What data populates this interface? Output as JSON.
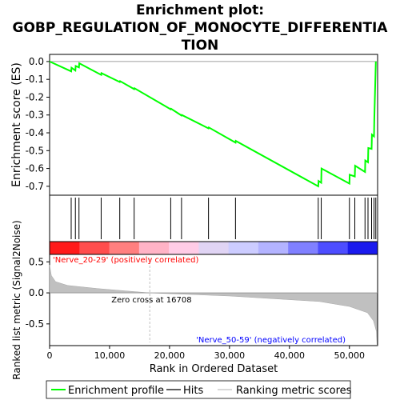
{
  "title": {
    "line1": "Enrichment plot:",
    "line2": "GOBP_REGULATION_OF_MONOCYTE_DIFFERENTIA",
    "line3": "TION"
  },
  "chart_data": {
    "type": "line",
    "colors": {
      "es_curve": "#00ff00",
      "hits": "#000000",
      "metric_fill": "#c0c0c0",
      "pos_label": "#ff0000",
      "neg_label": "#0000ff"
    },
    "es_panel": {
      "ylabel": "Enrichment score (ES)",
      "ylim": [
        -0.75,
        0.04
      ],
      "yticks": [
        0.0,
        -0.1,
        -0.2,
        -0.3,
        -0.4,
        -0.5,
        -0.6,
        -0.7
      ],
      "ytick_labels": [
        "0.0",
        "-0.1",
        "-0.2",
        "-0.3",
        "-0.4",
        "-0.5",
        "-0.6",
        "-0.7"
      ],
      "series": [
        {
          "name": "Enrichment profile",
          "x": [
            0,
            3600,
            3650,
            4300,
            4350,
            4900,
            4950,
            8600,
            8650,
            11700,
            11750,
            14100,
            14150,
            20200,
            20250,
            22000,
            22050,
            26500,
            26550,
            31000,
            31050,
            44800,
            44850,
            45300,
            45350,
            50000,
            50050,
            50900,
            50950,
            52600,
            52650,
            53100,
            53150,
            53700,
            53750,
            54100,
            54150,
            54400
          ],
          "y": [
            0.0,
            -0.055,
            -0.035,
            -0.05,
            -0.025,
            -0.033,
            -0.01,
            -0.075,
            -0.065,
            -0.115,
            -0.11,
            -0.155,
            -0.15,
            -0.268,
            -0.265,
            -0.303,
            -0.3,
            -0.375,
            -0.37,
            -0.455,
            -0.445,
            -0.7,
            -0.67,
            -0.68,
            -0.6,
            -0.685,
            -0.635,
            -0.645,
            -0.585,
            -0.62,
            -0.555,
            -0.565,
            -0.485,
            -0.49,
            -0.41,
            -0.42,
            -0.32,
            0.0
          ]
        }
      ]
    },
    "hits": [
      3600,
      4300,
      4900,
      8600,
      11700,
      14100,
      20200,
      22000,
      26500,
      31000,
      44800,
      45300,
      50000,
      50900,
      52600,
      53100,
      53700,
      54100,
      54400
    ],
    "ranking": {
      "pos_label": "'Nerve_20-29' (positively correlated)",
      "neg_label": "'Nerve_50-59' (negatively correlated)",
      "zero_cross_label": "Zero cross at 16708",
      "zero_cross": 16708,
      "ylabel": "Ranked list metric (Signal2Noise)",
      "ylim": [
        -0.85,
        0.62
      ],
      "yticks": [
        0.5,
        0.0,
        -0.5
      ],
      "ytick_labels": [
        "0.5",
        "0.0",
        "-0.5"
      ],
      "metric_x": [
        0,
        300,
        1000,
        3000,
        8000,
        16708,
        30000,
        45000,
        50000,
        53000,
        54000,
        54500,
        54600
      ],
      "metric_y": [
        0.45,
        0.28,
        0.18,
        0.12,
        0.07,
        0.0,
        -0.05,
        -0.14,
        -0.22,
        -0.32,
        -0.45,
        -0.62,
        -0.85
      ]
    },
    "xlabel": "Rank in Ordered Dataset",
    "xlim": [
      0,
      54700
    ],
    "xticks": [
      0,
      10000,
      20000,
      30000,
      40000,
      50000
    ],
    "xtick_labels": [
      "0",
      "10,000",
      "20,000",
      "30,000",
      "40,000",
      "50,000"
    ],
    "legend": {
      "placement": "bottom",
      "items": [
        "Enrichment profile",
        "Hits",
        "Ranking metric scores"
      ]
    }
  }
}
